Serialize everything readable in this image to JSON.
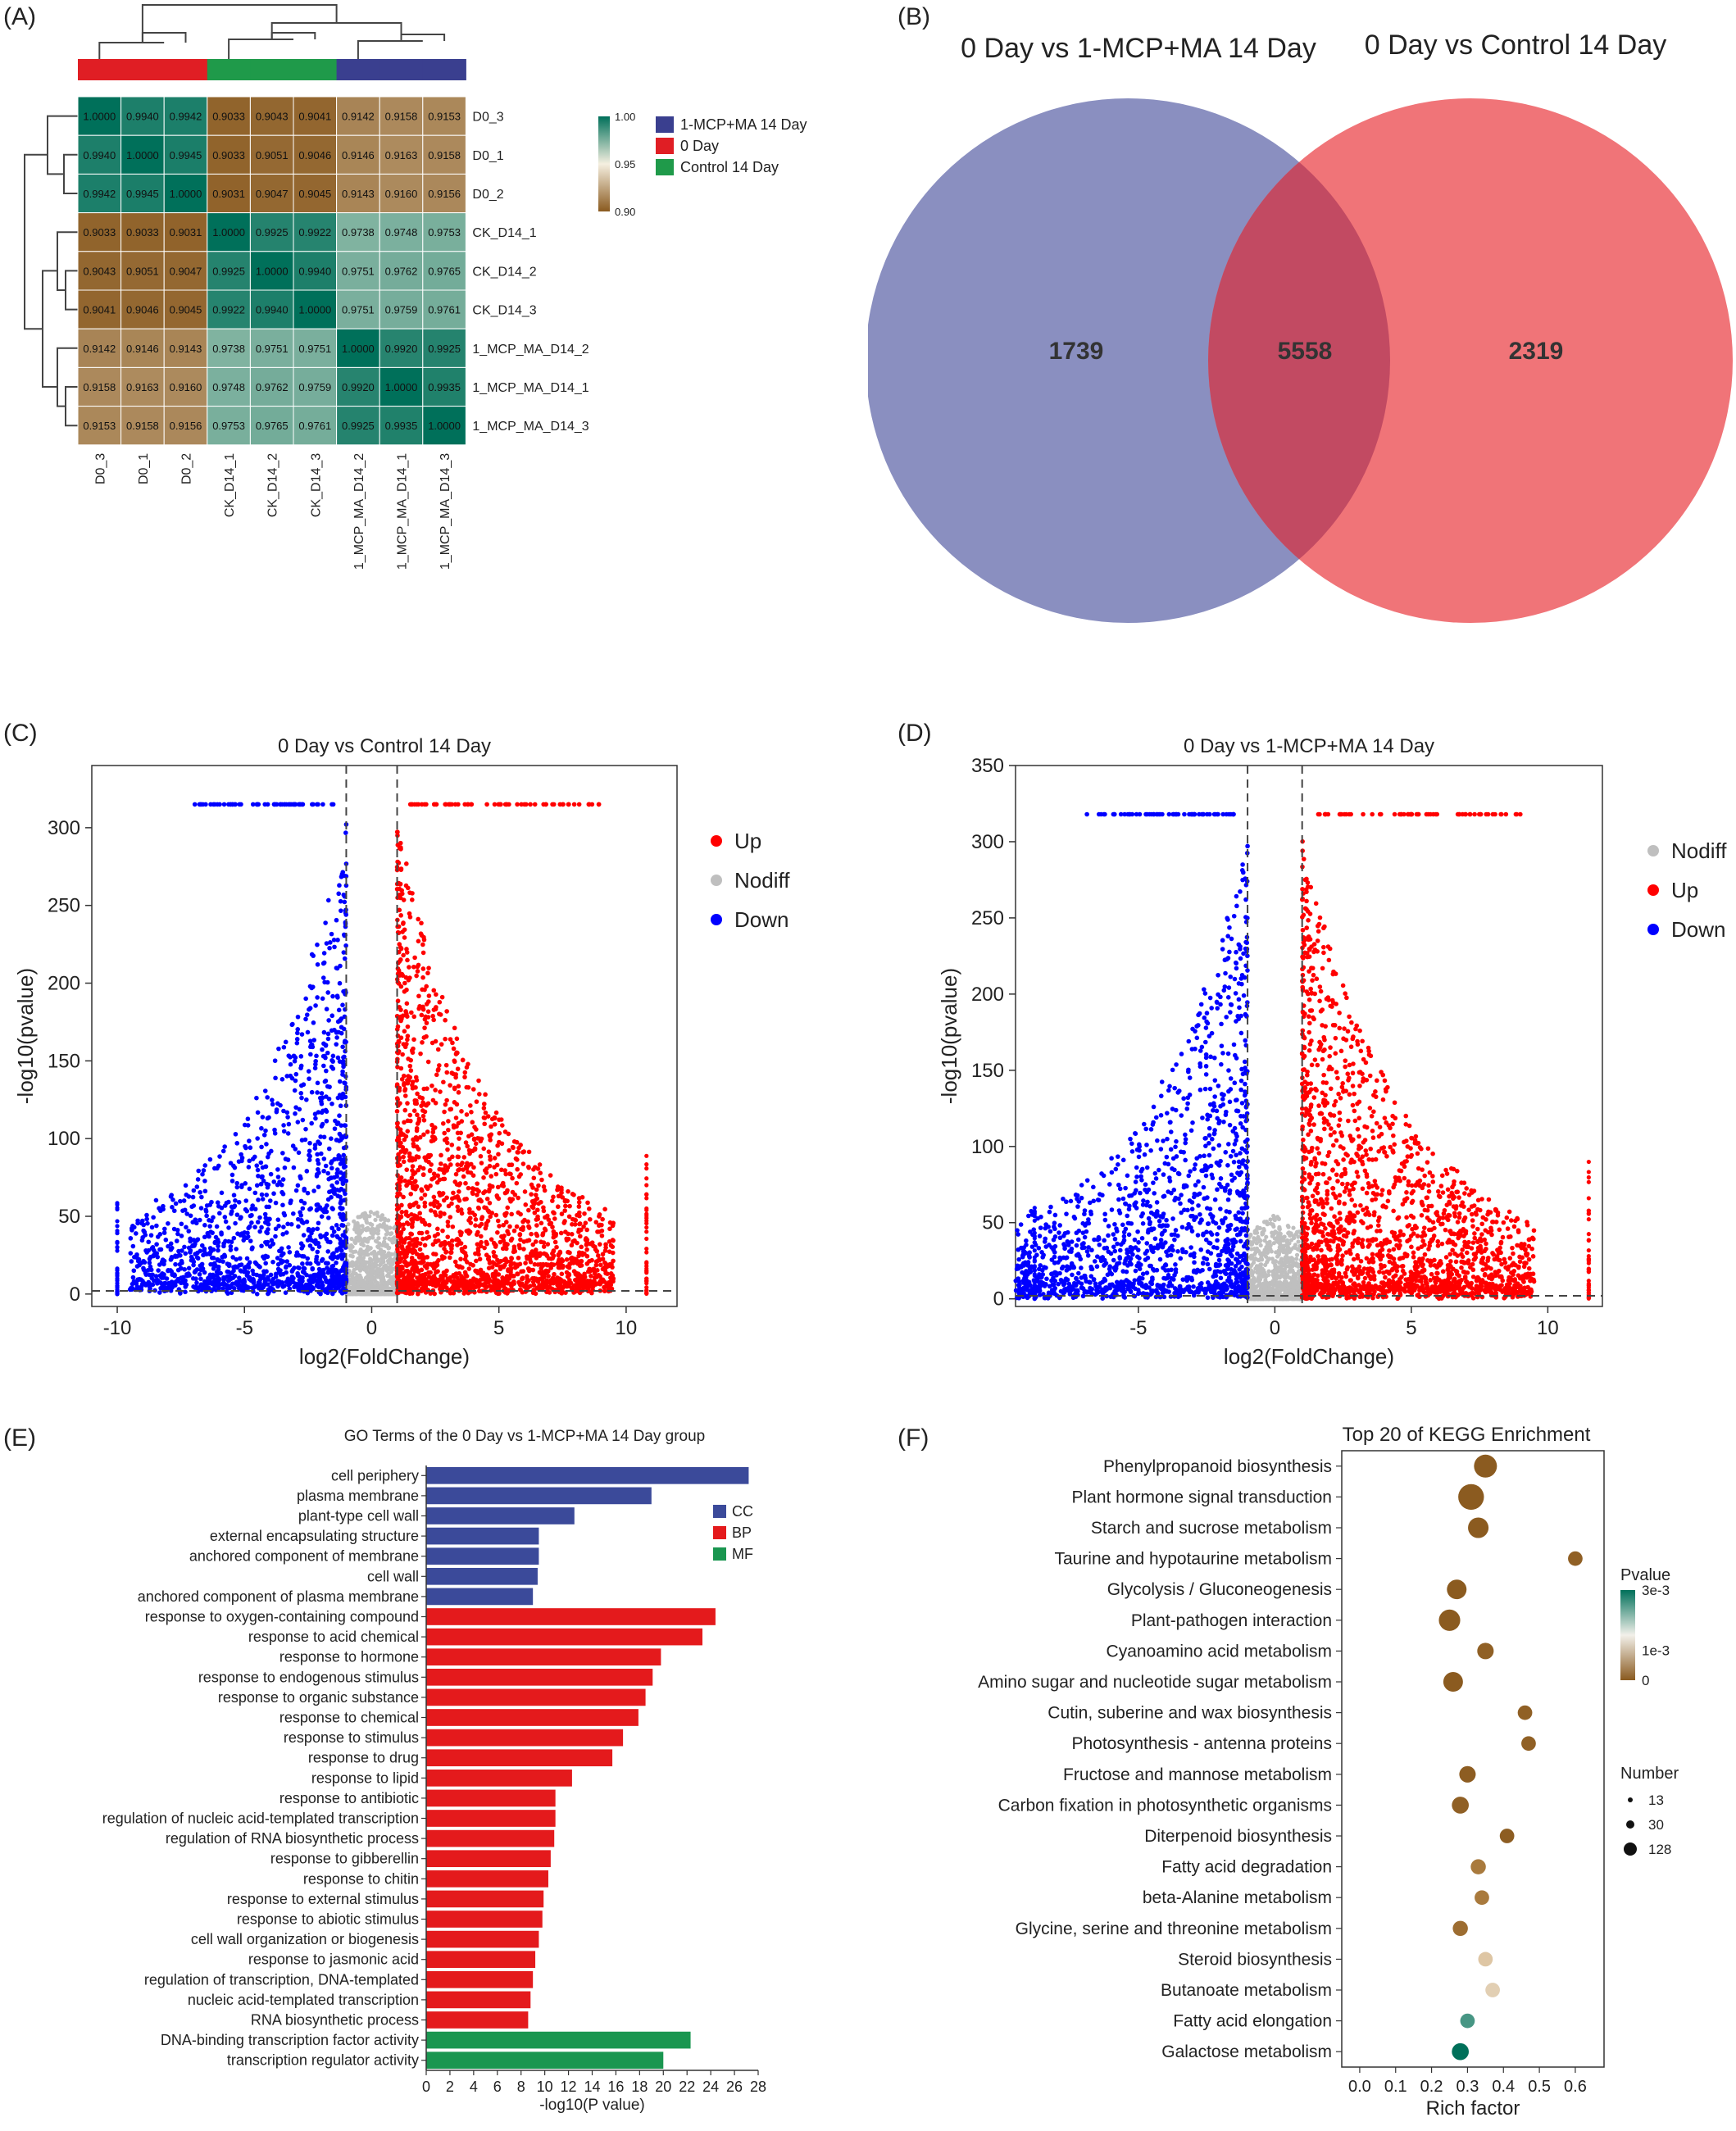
{
  "panels": {
    "A": "(A)",
    "B": "(B)",
    "C": "(C)",
    "D": "(D)",
    "E": "(E)",
    "F": "(F)"
  },
  "colors": {
    "mcp": "#3a3f8f",
    "day0": "#e01e24",
    "control": "#1f9a4a",
    "heat_high": "#00705a",
    "heat_mid": "#f5efe0",
    "heat_low": "#8a5a1f",
    "venn_left": "#8a8fc0",
    "venn_right": "#f07478",
    "venn_overlap": "#c24a62",
    "up": "#ff0000",
    "down": "#0000ff",
    "nodiff": "#bfbfbf",
    "go_cc": "#3b4a9a",
    "go_bp": "#e41a1c",
    "go_mf": "#1a9650"
  },
  "chart_data": [
    {
      "id": "A",
      "type": "heatmap",
      "samples": [
        "D0_3",
        "D0_1",
        "D0_2",
        "CK_D14_1",
        "CK_D14_2",
        "CK_D14_3",
        "1_MCP_MA_D14_2",
        "1_MCP_MA_D14_1",
        "1_MCP_MA_D14_3"
      ],
      "sample_groups": [
        "0 Day",
        "0 Day",
        "0 Day",
        "Control 14 Day",
        "Control 14 Day",
        "Control 14 Day",
        "1-MCP+MA 14 Day",
        "1-MCP+MA 14 Day",
        "1-MCP+MA 14 Day"
      ],
      "cell_labels": [
        [
          "1.0000",
          "0.9940",
          "0.9942",
          "0.9033",
          "0.9043",
          "0.9041",
          "0.9142",
          "0.9158",
          "0.9153"
        ],
        [
          "0.9940",
          "1.0000",
          "0.9945",
          "0.9033",
          "0.9051",
          "0.9046",
          "0.9146",
          "0.9163",
          "0.9158"
        ],
        [
          "0.9942",
          "0.9945",
          "1.0000",
          "0.9031",
          "0.9047",
          "0.9045",
          "0.9143",
          "0.9160",
          "0.9156"
        ],
        [
          "0.9033",
          "0.9033",
          "0.9031",
          "1.0000",
          "0.9925",
          "0.9922",
          "0.9738",
          "0.9748",
          "0.9753"
        ],
        [
          "0.9043",
          "0.9051",
          "0.9047",
          "0.9925",
          "1.0000",
          "0.9940",
          "0.9751",
          "0.9762",
          "0.9765"
        ],
        [
          "0.9041",
          "0.9046",
          "0.9045",
          "0.9922",
          "0.9940",
          "1.0000",
          "0.9751",
          "0.9759",
          "0.9761"
        ],
        [
          "0.9142",
          "0.9146",
          "0.9143",
          "0.9738",
          "0.9751",
          "0.9751",
          "1.0000",
          "0.9920",
          "0.9925"
        ],
        [
          "0.9158",
          "0.9163",
          "0.9160",
          "0.9748",
          "0.9762",
          "0.9759",
          "0.9920",
          "1.0000",
          "0.9935"
        ],
        [
          "0.9153",
          "0.9158",
          "0.9156",
          "0.9753",
          "0.9765",
          "0.9761",
          "0.9925",
          "0.9935",
          "1.0000"
        ]
      ],
      "scale_ticks": [
        "1.00",
        "0.95",
        "0.90"
      ],
      "scale_values": [
        1.0,
        0.95,
        0.9
      ],
      "legend": [
        "1-MCP+MA 14 Day",
        "0 Day",
        "Control 14 Day"
      ]
    },
    {
      "id": "B",
      "type": "venn",
      "sets": [
        "0 Day vs 1-MCP+MA 14 Day",
        "0 Day vs Control 14 Day"
      ],
      "counts": {
        "left_only": "1739",
        "both": "5558",
        "right_only": "2319"
      }
    },
    {
      "id": "C",
      "type": "scatter",
      "title": "0 Day vs Control 14 Day",
      "xlabel": "log2(FoldChange)",
      "ylabel": "-log10(pvalue)",
      "xlim": [
        -11,
        12
      ],
      "ylim": [
        -8,
        340
      ],
      "xticks": [
        "-10",
        "-5",
        "0",
        "5",
        "10"
      ],
      "xtick_values": [
        -10,
        -5,
        0,
        5,
        10
      ],
      "yticks": [
        "0",
        "50",
        "100",
        "150",
        "200",
        "250",
        "300"
      ],
      "ytick_values": [
        0,
        50,
        100,
        150,
        200,
        250,
        300
      ],
      "vlines": [
        -1,
        1
      ],
      "hline": 2,
      "legend": [
        "Up",
        "Nodiff",
        "Down"
      ],
      "legend_colors": [
        "#ff0000",
        "#bfbfbf",
        "#0000ff"
      ],
      "cap": 315,
      "x_extreme": [
        -10,
        10.8
      ]
    },
    {
      "id": "D",
      "type": "scatter",
      "title": "0 Day vs 1-MCP+MA 14 Day",
      "xlabel": "log2(FoldChange)",
      "ylabel": "-log10(pvalue)",
      "xlim": [
        -9.5,
        12
      ],
      "ylim": [
        -5,
        350
      ],
      "xticks": [
        "-5",
        "0",
        "5",
        "10"
      ],
      "xtick_values": [
        -5,
        0,
        5,
        10
      ],
      "yticks": [
        "0",
        "50",
        "100",
        "150",
        "200",
        "250",
        "300",
        "350"
      ],
      "ytick_values": [
        0,
        50,
        100,
        150,
        200,
        250,
        300,
        350
      ],
      "vlines": [
        -1,
        1
      ],
      "hline": 2,
      "legend": [
        "Nodiff",
        "Up",
        "Down"
      ],
      "legend_colors": [
        "#bfbfbf",
        "#ff0000",
        "#0000ff"
      ],
      "cap": 318,
      "x_extreme": [
        -8.8,
        11.5
      ]
    },
    {
      "id": "E",
      "type": "bar",
      "title": "GO Terms of the 0 Day vs 1-MCP+MA 14 Day group",
      "xlabel": "-log10(P value)",
      "xlim": [
        0,
        28
      ],
      "xticks": [
        "0",
        "2",
        "4",
        "6",
        "8",
        "10",
        "12",
        "14",
        "16",
        "18",
        "20",
        "22",
        "24",
        "26",
        "28"
      ],
      "categories": [
        "cell periphery",
        "plasma membrane",
        "plant-type cell wall",
        "external encapsulating structure",
        "anchored component of membrane",
        "cell wall",
        "anchored component of plasma membrane",
        "response to oxygen-containing compound",
        "response to acid chemical",
        "response to hormone",
        "response to endogenous stimulus",
        "response to organic substance",
        "response to chemical",
        "response to stimulus",
        "response to drug",
        "response to lipid",
        "response to antibiotic",
        "regulation of nucleic acid-templated transcription",
        "regulation of RNA biosynthetic process",
        "response to gibberellin",
        "response to chitin",
        "response to external stimulus",
        "response to abiotic stimulus",
        "cell wall organization or biogenesis",
        "response to jasmonic acid",
        "regulation of transcription, DNA-templated",
        "nucleic acid-templated transcription",
        "RNA biosynthetic process",
        "DNA-binding transcription factor activity",
        "transcription regulator activity"
      ],
      "values": [
        27.2,
        19.0,
        12.5,
        9.5,
        9.5,
        9.4,
        9.0,
        24.4,
        23.3,
        19.8,
        19.1,
        18.5,
        17.9,
        16.6,
        15.7,
        12.3,
        10.9,
        10.9,
        10.8,
        10.5,
        10.3,
        9.9,
        9.8,
        9.5,
        9.2,
        9.0,
        8.8,
        8.6,
        22.3,
        20.0
      ],
      "groups": [
        "CC",
        "CC",
        "CC",
        "CC",
        "CC",
        "CC",
        "CC",
        "BP",
        "BP",
        "BP",
        "BP",
        "BP",
        "BP",
        "BP",
        "BP",
        "BP",
        "BP",
        "BP",
        "BP",
        "BP",
        "BP",
        "BP",
        "BP",
        "BP",
        "BP",
        "BP",
        "BP",
        "BP",
        "MF",
        "MF"
      ],
      "legend": [
        "CC",
        "BP",
        "MF"
      ]
    },
    {
      "id": "F",
      "type": "scatter",
      "title": "Top 20 of KEGG Enrichment",
      "xlabel": "Rich factor",
      "xlim": [
        -0.05,
        0.68
      ],
      "xticks": [
        "0.0",
        "0.1",
        "0.2",
        "0.3",
        "0.4",
        "0.5",
        "0.6"
      ],
      "xtick_values": [
        0.0,
        0.1,
        0.2,
        0.3,
        0.4,
        0.5,
        0.6
      ],
      "categories": [
        "Phenylpropanoid biosynthesis",
        "Plant hormone signal transduction",
        "Starch and sucrose metabolism",
        "Taurine and hypotaurine metabolism",
        "Glycolysis / Gluconeogenesis",
        "Plant-pathogen interaction",
        "Cyanoamino acid metabolism",
        "Amino sugar and nucleotide sugar metabolism",
        "Cutin, suberine and wax biosynthesis",
        "Photosynthesis - antenna proteins",
        "Fructose and mannose metabolism",
        "Carbon fixation in photosynthetic organisms",
        "Diterpenoid biosynthesis",
        "Fatty acid degradation",
        "beta-Alanine metabolism",
        "Glycine, serine and threonine metabolism",
        "Steroid biosynthesis",
        "Butanoate metabolism",
        "Fatty acid elongation",
        "Galactose metabolism"
      ],
      "rich_factor": [
        0.35,
        0.31,
        0.33,
        0.6,
        0.27,
        0.25,
        0.35,
        0.26,
        0.46,
        0.47,
        0.3,
        0.28,
        0.41,
        0.33,
        0.34,
        0.28,
        0.35,
        0.37,
        0.3,
        0.28
      ],
      "number": [
        55,
        75,
        40,
        13,
        35,
        45,
        20,
        35,
        13,
        13,
        20,
        22,
        13,
        15,
        13,
        15,
        13,
        13,
        13,
        22
      ],
      "pvalue": [
        1e-05,
        1e-05,
        2e-05,
        0.0001,
        2e-05,
        1e-05,
        0.0001,
        2e-05,
        0.0001,
        0.0001,
        5e-05,
        0.0001,
        5e-05,
        0.0005,
        0.0005,
        0.0003,
        0.0015,
        0.0016,
        0.0027,
        0.003
      ],
      "pvalue_legend_title": "Pvalue",
      "pvalue_ticks": [
        "3e-3",
        "1e-3",
        "0"
      ],
      "pvalue_tick_values": [
        0.003,
        0.001,
        0
      ],
      "size_legend_title": "Number",
      "size_legend": [
        "13",
        "30",
        "128"
      ],
      "size_legend_values": [
        13,
        30,
        128
      ]
    }
  ]
}
